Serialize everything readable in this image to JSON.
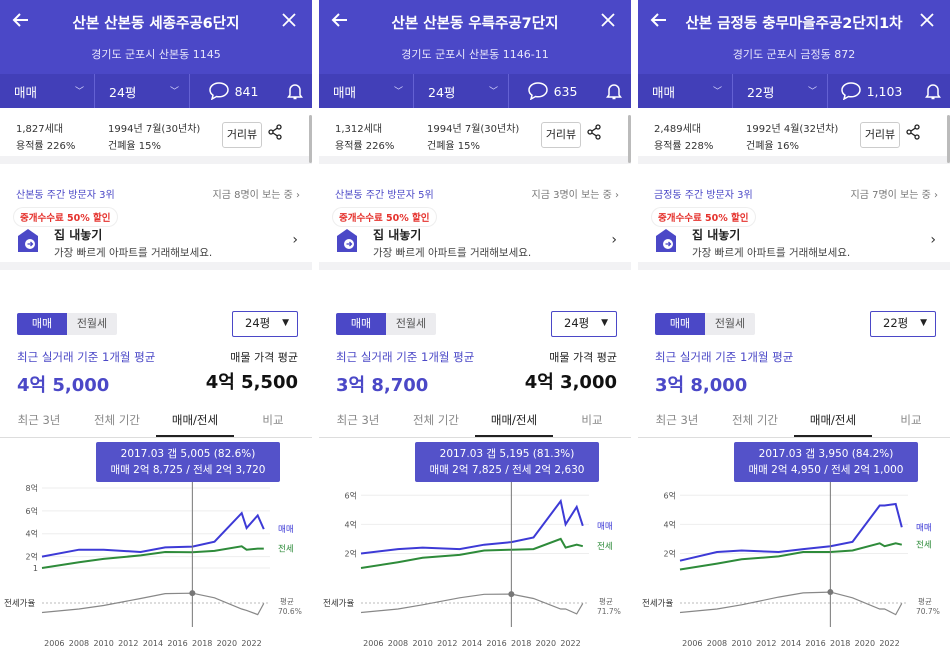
{
  "colors": {
    "brand": "#4b48c7",
    "sale_line": "#3d3ad6",
    "lease_line": "#2e8b3a",
    "ratio_line": "#888888",
    "promo": "#e5322d"
  },
  "icons": [
    "back-arrow-icon",
    "close-icon",
    "chevron-down-icon",
    "chat-bubble-icon",
    "bell-icon",
    "share-icon",
    "house-sell-icon",
    "chevron-right-icon"
  ],
  "panels": [
    {
      "title": "산본 산본동 세종주공6단지",
      "address": "경기도 군포시 산본동 1145",
      "trade": "매매",
      "size": "24평",
      "comments": "841",
      "households": "1,827세대",
      "far": "용적률 226%",
      "built": "1994년 7월(30년차)",
      "bcr": "건폐율 15%",
      "walk_label": "거리뷰",
      "visit_rank": "산본동 주간 방문자 3위",
      "viewing_now": "지금 8명이 보는 중",
      "promo": "중개수수료 50% 할인",
      "sell_title": "집 내놓기",
      "sell_sub": "가장 빠르게 아파트를 거래해보세요.",
      "toggle_on": "매매",
      "toggle_off": "전월세",
      "size_select": "24평",
      "avg_label": "최근 실거래 기준 1개월 평균",
      "avg_value": "4억 5,000",
      "ask_label": "매물 가격 평균",
      "ask_value": "4억 5,500",
      "tabs": [
        "최근 3년",
        "전체 기간",
        "매매/전세",
        "비교"
      ],
      "tip1": "2017.03  갭 5,005 (82.6%)",
      "tip2": "매매 2억 8,725 / 전세 2억 3,720",
      "y_ticks": [
        "8억",
        "6억",
        "4억",
        "2억",
        "1"
      ],
      "sale_tag": "매매",
      "lease_tag": "전세",
      "ratio_label": "전세가율",
      "avg_tag": "평균",
      "avg_ratio": "70.6%",
      "x_ticks": [
        "2006",
        "2008",
        "2010",
        "2012",
        "2014",
        "2016",
        "2018",
        "2020",
        "2022"
      ]
    },
    {
      "title": "산본 산본동 우륵주공7단지",
      "address": "경기도 군포시 산본동 1146-11",
      "trade": "매매",
      "size": "24평",
      "comments": "635",
      "households": "1,312세대",
      "far": "용적률 226%",
      "built": "1994년 7월(30년차)",
      "bcr": "건폐율 15%",
      "walk_label": "거리뷰",
      "visit_rank": "산본동 주간 방문자 5위",
      "viewing_now": "지금 3명이 보는 중",
      "promo": "중개수수료 50% 할인",
      "sell_title": "집 내놓기",
      "sell_sub": "가장 빠르게 아파트를 거래해보세요.",
      "toggle_on": "매매",
      "toggle_off": "전월세",
      "size_select": "24평",
      "avg_label": "최근 실거래 기준 1개월 평균",
      "avg_value": "3억 8,700",
      "ask_label": "매물 가격 평균",
      "ask_value": "4억 3,000",
      "tabs": [
        "최근 3년",
        "전체 기간",
        "매매/전세",
        "비교"
      ],
      "tip1": "2017.03  갭 5,195 (81.3%)",
      "tip2": "매매 2억 7,825 / 전세 2억 2,630",
      "y_ticks": [
        "6억",
        "4억",
        "2억"
      ],
      "sale_tag": "매매",
      "lease_tag": "전세",
      "ratio_label": "전세가율",
      "avg_tag": "평균",
      "avg_ratio": "71.7%",
      "x_ticks": [
        "2006",
        "2008",
        "2010",
        "2012",
        "2014",
        "2016",
        "2018",
        "2020",
        "2022"
      ]
    },
    {
      "title": "산본 금정동 충무마을주공2단지1차",
      "address": "경기도 군포시 금정동 872",
      "trade": "매매",
      "size": "22평",
      "comments": "1,103",
      "households": "2,489세대",
      "far": "용적률 228%",
      "built": "1992년 4월(32년차)",
      "bcr": "건폐율 16%",
      "walk_label": "거리뷰",
      "visit_rank": "금정동 주간 방문자 3위",
      "viewing_now": "지금 7명이 보는 중",
      "promo": "중개수수료 50% 할인",
      "sell_title": "집 내놓기",
      "sell_sub": "가장 빠르게 아파트를 거래해보세요.",
      "toggle_on": "매매",
      "toggle_off": "전월세",
      "size_select": "22평",
      "avg_label": "최근 실거래 기준 1개월 평균",
      "avg_value": "3억 8,000",
      "ask_label": "",
      "ask_value": "",
      "tabs": [
        "최근 3년",
        "전체 기간",
        "매매/전세",
        "비교"
      ],
      "tip1": "2017.03  갭 3,950 (84.2%)",
      "tip2": "매매 2억 4,950 / 전세 2억 1,000",
      "y_ticks": [
        "6억",
        "4억",
        "2억"
      ],
      "sale_tag": "매매",
      "lease_tag": "전세",
      "ratio_label": "전세가율",
      "avg_tag": "평균",
      "avg_ratio": "70.7%",
      "x_ticks": [
        "2006",
        "2008",
        "2010",
        "2012",
        "2014",
        "2016",
        "2018",
        "2020",
        "2022"
      ]
    }
  ],
  "chart_data": [
    {
      "type": "line",
      "x": [
        2005,
        2008,
        2010,
        2013,
        2015,
        2017.2,
        2019,
        2021.2,
        2021.6,
        2022.5,
        2023
      ],
      "ylim": [
        1,
        8
      ],
      "series": [
        {
          "name": "매매",
          "values": [
            2.0,
            2.6,
            2.6,
            2.4,
            2.8,
            2.87,
            3.3,
            5.8,
            4.5,
            5.6,
            4.4
          ]
        },
        {
          "name": "전세",
          "values": [
            1.0,
            1.5,
            1.8,
            2.1,
            2.4,
            2.37,
            2.5,
            2.9,
            2.6,
            2.7,
            2.7
          ]
        }
      ],
      "ratio": {
        "name": "전세가율",
        "values": [
          0.55,
          0.6,
          0.65,
          0.75,
          0.82,
          0.826,
          0.76,
          0.6,
          0.58,
          0.52,
          0.68
        ],
        "average": 70.6
      }
    },
    {
      "type": "line",
      "x": [
        2005,
        2008,
        2010,
        2013,
        2015,
        2017.2,
        2019,
        2021.2,
        2021.6,
        2022.5,
        2023
      ],
      "ylim": [
        1,
        6.5
      ],
      "series": [
        {
          "name": "매매",
          "values": [
            2.0,
            2.3,
            2.4,
            2.3,
            2.6,
            2.78,
            3.1,
            5.6,
            4.0,
            5.2,
            3.9
          ]
        },
        {
          "name": "전세",
          "values": [
            1.0,
            1.4,
            1.7,
            1.9,
            2.2,
            2.26,
            2.3,
            3.0,
            2.4,
            2.6,
            2.5
          ]
        }
      ],
      "ratio": {
        "name": "전세가율",
        "values": [
          0.55,
          0.6,
          0.66,
          0.76,
          0.81,
          0.813,
          0.75,
          0.6,
          0.6,
          0.53,
          0.68
        ],
        "average": 71.7
      }
    },
    {
      "type": "line",
      "x": [
        2005,
        2008,
        2010,
        2013,
        2015,
        2017.2,
        2019,
        2021.2,
        2021.6,
        2022.5,
        2023
      ],
      "ylim": [
        1,
        6.5
      ],
      "series": [
        {
          "name": "매매",
          "values": [
            1.5,
            2.1,
            2.2,
            2.1,
            2.3,
            2.5,
            2.8,
            5.3,
            5.3,
            5.4,
            3.8
          ]
        },
        {
          "name": "전세",
          "values": [
            0.9,
            1.3,
            1.6,
            1.8,
            2.1,
            2.1,
            2.2,
            2.7,
            2.5,
            2.7,
            2.6
          ]
        }
      ],
      "ratio": {
        "name": "전세가율",
        "values": [
          0.55,
          0.6,
          0.66,
          0.77,
          0.83,
          0.842,
          0.76,
          0.6,
          0.6,
          0.52,
          0.68
        ],
        "average": 70.7
      }
    }
  ]
}
